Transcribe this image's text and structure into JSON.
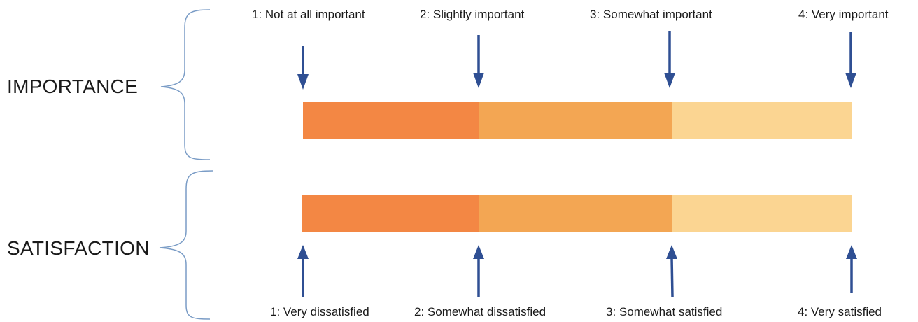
{
  "colors": {
    "segment_1": "#f38744",
    "segment_2": "#f3a653",
    "segment_3": "#fbd592",
    "arrow": "#2f4f93",
    "brace": "#7a9cc6"
  },
  "importance": {
    "title": "IMPORTANCE",
    "levels": [
      "1: Not at all important",
      "2: Slightly important",
      "3: Somewhat important",
      "4: Very important"
    ]
  },
  "satisfaction": {
    "title": "SATISFACTION",
    "levels": [
      "1: Very dissatisfied",
      "2: Somewhat dissatisfied",
      "3: Somewhat satisfied",
      "4: Very satisfied"
    ]
  }
}
